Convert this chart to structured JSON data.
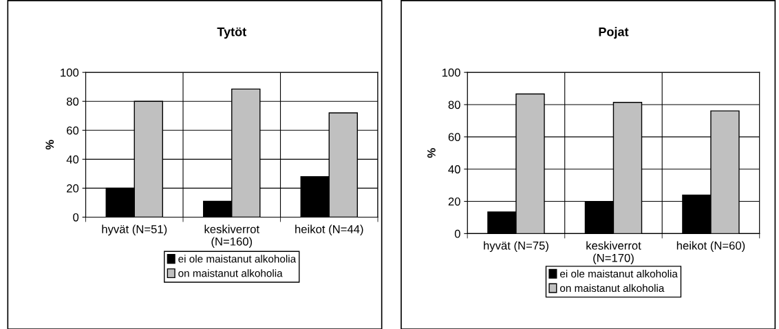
{
  "chart_data": [
    {
      "type": "bar",
      "title": "Tytöt",
      "ylabel": "%",
      "categories": [
        "hyvät (N=51)",
        "keskiverrot\n(N=160)",
        "heikot (N=44)"
      ],
      "series": [
        {
          "name": "ei ole maistanut alkoholia",
          "color": "#000000",
          "values": [
            20,
            11,
            28
          ]
        },
        {
          "name": "on maistanut alkoholia",
          "color": "#c0c0c0",
          "values": [
            80,
            88.5,
            72
          ]
        }
      ],
      "ylim": [
        0,
        100
      ],
      "yticks": [
        0,
        20,
        40,
        60,
        80,
        100
      ],
      "grid": true,
      "legend": "bottom"
    },
    {
      "type": "bar",
      "title": "Pojat",
      "ylabel": "%",
      "categories": [
        "hyvät (N=75)",
        "keskiverrot\n(N=170)",
        "heikot (N=60)"
      ],
      "series": [
        {
          "name": "ei ole maistanut alkoholia",
          "color": "#000000",
          "values": [
            13.4,
            19.7,
            23.9
          ]
        },
        {
          "name": "on maistanut alkoholia",
          "color": "#c0c0c0",
          "values": [
            86.6,
            81.4,
            76.1
          ]
        }
      ],
      "ylim": [
        0,
        100
      ],
      "yticks": [
        0,
        20,
        40,
        60,
        80,
        100
      ],
      "grid": true,
      "legend": "bottom"
    }
  ]
}
